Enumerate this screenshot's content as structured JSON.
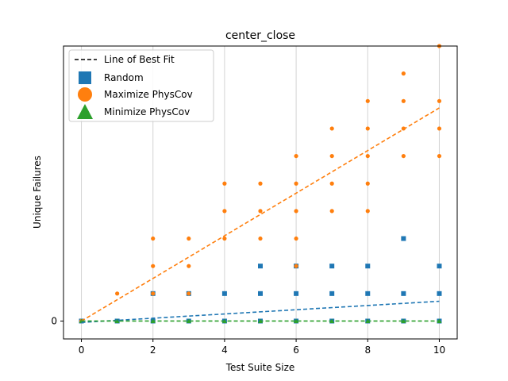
{
  "chart_data": {
    "type": "scatter",
    "title": "center_close",
    "xlabel": "Test Suite Size",
    "ylabel": "Unique Failures",
    "xlim": [
      -0.5,
      10.5
    ],
    "ylim": [
      -0.65,
      10.0
    ],
    "xticks": [
      0,
      2,
      4,
      6,
      8,
      10
    ],
    "yticks": [
      0
    ],
    "grid": "vertical",
    "legend_position": "upper-left",
    "legend": [
      {
        "label": "Line of Best Fit",
        "kind": "dashed-line",
        "color": "#000000"
      },
      {
        "label": "Random",
        "kind": "square",
        "color": "#1f77b4"
      },
      {
        "label": "Maximize PhysCov",
        "kind": "circle",
        "color": "#ff7f0e"
      },
      {
        "label": "Minimize PhysCov",
        "kind": "triangle",
        "color": "#2ca02c"
      }
    ],
    "series": [
      {
        "name": "Random",
        "marker": "square",
        "color": "#1f77b4",
        "points": [
          [
            0,
            0
          ],
          [
            1,
            0
          ],
          [
            2,
            0
          ],
          [
            2,
            1
          ],
          [
            3,
            0
          ],
          [
            3,
            1
          ],
          [
            4,
            0
          ],
          [
            4,
            1
          ],
          [
            5,
            0
          ],
          [
            5,
            1
          ],
          [
            5,
            2
          ],
          [
            6,
            0
          ],
          [
            6,
            1
          ],
          [
            6,
            2
          ],
          [
            7,
            0
          ],
          [
            7,
            1
          ],
          [
            7,
            2
          ],
          [
            8,
            0
          ],
          [
            8,
            1
          ],
          [
            8,
            2
          ],
          [
            9,
            0
          ],
          [
            9,
            1
          ],
          [
            9,
            3
          ],
          [
            10,
            0
          ],
          [
            10,
            1
          ],
          [
            10,
            2
          ]
        ],
        "fit": [
          [
            0,
            -0.05
          ],
          [
            10,
            0.72
          ]
        ]
      },
      {
        "name": "Maximize PhysCov",
        "marker": "circle",
        "color": "#ff7f0e",
        "points": [
          [
            0,
            0
          ],
          [
            1,
            1
          ],
          [
            2,
            1
          ],
          [
            2,
            2
          ],
          [
            2,
            3
          ],
          [
            3,
            1
          ],
          [
            3,
            2
          ],
          [
            3,
            3
          ],
          [
            4,
            3
          ],
          [
            4,
            4
          ],
          [
            4,
            5
          ],
          [
            5,
            3
          ],
          [
            5,
            4
          ],
          [
            5,
            5
          ],
          [
            6,
            2
          ],
          [
            6,
            3
          ],
          [
            6,
            4
          ],
          [
            6,
            5
          ],
          [
            6,
            6
          ],
          [
            7,
            4
          ],
          [
            7,
            5
          ],
          [
            7,
            6
          ],
          [
            7,
            7
          ],
          [
            8,
            4
          ],
          [
            8,
            5
          ],
          [
            8,
            6
          ],
          [
            8,
            7
          ],
          [
            8,
            8
          ],
          [
            9,
            6
          ],
          [
            9,
            7
          ],
          [
            9,
            8
          ],
          [
            9,
            9
          ],
          [
            10,
            6
          ],
          [
            10,
            7
          ],
          [
            10,
            8
          ],
          [
            10,
            10
          ]
        ],
        "fit": [
          [
            0,
            0
          ],
          [
            10,
            7.75
          ]
        ]
      },
      {
        "name": "Minimize PhysCov",
        "marker": "triangle",
        "color": "#2ca02c",
        "points": [
          [
            0,
            0
          ],
          [
            1,
            0
          ],
          [
            2,
            0
          ],
          [
            3,
            0
          ],
          [
            4,
            0
          ],
          [
            5,
            0
          ],
          [
            6,
            0
          ],
          [
            7,
            0
          ],
          [
            8,
            0
          ],
          [
            9,
            0
          ],
          [
            10,
            0
          ]
        ],
        "fit": [
          [
            0,
            0
          ],
          [
            10,
            0
          ]
        ]
      }
    ]
  }
}
